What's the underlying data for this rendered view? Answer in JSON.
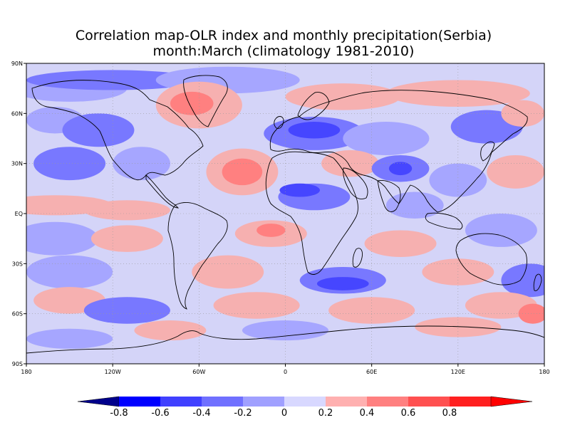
{
  "title": {
    "line1": "Correlation map-OLR index and monthly precipitation(Serbia)",
    "line2": "month:March (climatology 1981-2010)"
  },
  "axes": {
    "lat_ticks": [
      "90N",
      "60N",
      "30N",
      "EQ",
      "30S",
      "60S",
      "90S"
    ],
    "lon_ticks": [
      "180",
      "120W",
      "60W",
      "0",
      "60E",
      "120E",
      "180"
    ],
    "lat_range": [
      -90,
      90
    ],
    "lon_range": [
      -180,
      180
    ],
    "grid": "dotted"
  },
  "colorbar": {
    "labels": [
      "-0.8",
      "-0.6",
      "-0.4",
      "-0.2",
      "0",
      "0.2",
      "0.4",
      "0.6",
      "0.8"
    ],
    "colors": [
      "#00008b",
      "#0000ff",
      "#4040ff",
      "#7070ff",
      "#a0a0ff",
      "#d8d8ff",
      "#ffb0b0",
      "#ff8080",
      "#ff5050",
      "#ff2020",
      "#ff0000"
    ]
  },
  "map": {
    "field": "correlation coefficient",
    "palette": {
      "neg_strong": "#4646ff",
      "neg_mid": "#7878ff",
      "neg_weak": "#a6a6ff",
      "neutral": "#d4d4f8",
      "pos_weak": "#f6b0b0",
      "pos_mid": "#ff8080",
      "pos_strong": "#ff5a5a"
    }
  }
}
